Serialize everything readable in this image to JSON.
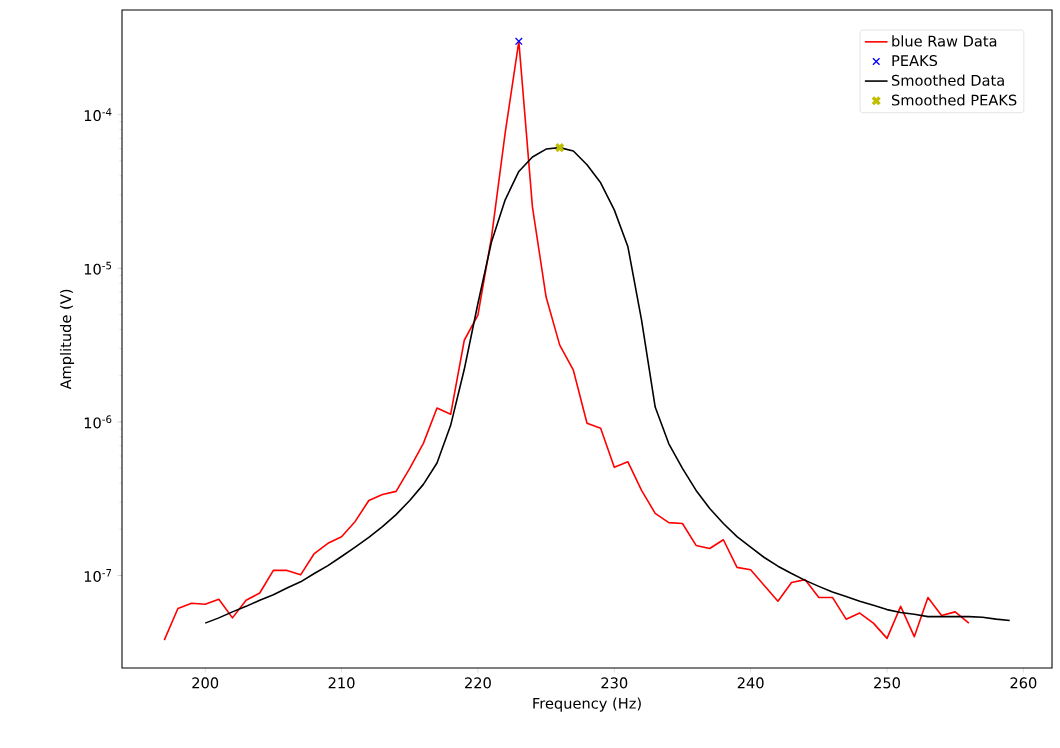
{
  "chart_data": {
    "type": "line",
    "xlabel": "Frequency (Hz)",
    "ylabel": "Amplitude (V)",
    "log": "y",
    "legend": "top right",
    "grid": false,
    "xlim": [
      193.9,
      262.1
    ],
    "ylim": [
      2.5e-08,
      0.00048
    ],
    "xticks": [
      200,
      210,
      220,
      230,
      240,
      250,
      260
    ],
    "yticks": [
      {
        "value": 1e-07,
        "label": "10$^{-7}$"
      },
      {
        "value": 1e-06,
        "label": "10$^{-6}$"
      },
      {
        "value": 1e-05,
        "label": "10$^{-5}$"
      },
      {
        "value": 0.0001,
        "label": "10$^{-4}$"
      }
    ],
    "series": [
      {
        "name": "blue Raw Data",
        "color": "#ff0000",
        "marker": "none",
        "line_style": "solid",
        "x": [
          197,
          198,
          199,
          200,
          201,
          202,
          203,
          204,
          205,
          206,
          207,
          208,
          209,
          210,
          211,
          212,
          213,
          214,
          215,
          216,
          217,
          218,
          219,
          220,
          221,
          222,
          223,
          224,
          225,
          226,
          227,
          228,
          229,
          230,
          231,
          232,
          233,
          234,
          235,
          236,
          237,
          238,
          239,
          240,
          241,
          242,
          243,
          244,
          245,
          246,
          247,
          248,
          249,
          250,
          251,
          252,
          253,
          254,
          255,
          256
        ],
        "values": [
          3.8e-08,
          6.1e-08,
          6.6e-08,
          6.5e-08,
          7e-08,
          5.3e-08,
          6.9e-08,
          7.7e-08,
          1.08e-07,
          1.08e-07,
          1.01e-07,
          1.39e-07,
          1.62e-07,
          1.79e-07,
          2.25e-07,
          3.08e-07,
          3.37e-07,
          3.53e-07,
          4.98e-07,
          7.25e-07,
          1.23e-06,
          1.12e-06,
          3.4e-06,
          4.95e-06,
          1.6e-05,
          7.6e-05,
          0.0003,
          2.5e-05,
          6.5e-06,
          3.16e-06,
          2.17e-06,
          9.8e-07,
          9.1e-07,
          5.06e-07,
          5.5e-07,
          3.58e-07,
          2.54e-07,
          2.21e-07,
          2.18e-07,
          1.57e-07,
          1.5e-07,
          1.71e-07,
          1.13e-07,
          1.09e-07,
          8.6e-08,
          6.8e-08,
          9e-08,
          9.4e-08,
          7.2e-08,
          7.2e-08,
          5.2e-08,
          5.7e-08,
          4.9e-08,
          3.9e-08,
          6.3e-08,
          4e-08,
          7.2e-08,
          5.5e-08,
          5.8e-08,
          4.9e-08
        ]
      },
      {
        "name": "PEAKS",
        "type": "scatter",
        "color": "#0000ff",
        "marker": "cross",
        "x": [
          223
        ],
        "values": [
          0.0003
        ]
      },
      {
        "name": "Smoothed Data",
        "color": "#000000",
        "marker": "none",
        "line_style": "solid",
        "x": [
          200,
          201,
          202,
          203,
          204,
          205,
          206,
          207,
          208,
          209,
          210,
          211,
          212,
          213,
          214,
          215,
          216,
          217,
          218,
          219,
          220,
          221,
          222,
          223,
          224,
          225,
          226,
          227,
          228,
          229,
          230,
          231,
          232,
          233,
          234,
          235,
          236,
          237,
          238,
          239,
          240,
          241,
          242,
          243,
          244,
          245,
          246,
          247,
          248,
          249,
          250,
          251,
          252,
          253,
          254,
          255,
          256,
          257,
          258,
          259
        ],
        "values": [
          4.9e-08,
          5.3e-08,
          5.8e-08,
          6.3e-08,
          6.9e-08,
          7.5e-08,
          8.3e-08,
          9.1e-08,
          1.03e-07,
          1.16e-07,
          1.33e-07,
          1.53e-07,
          1.77e-07,
          2.08e-07,
          2.49e-07,
          3.08e-07,
          3.92e-07,
          5.4e-07,
          9.5e-07,
          2.2e-06,
          5.9e-06,
          1.49e-05,
          2.79e-05,
          4.27e-05,
          5.3e-05,
          5.97e-05,
          6.1e-05,
          5.8e-05,
          4.72e-05,
          3.6e-05,
          2.4e-05,
          1.38e-05,
          4.6e-06,
          1.25e-06,
          7.2e-07,
          4.98e-07,
          3.58e-07,
          2.73e-07,
          2.18e-07,
          1.79e-07,
          1.53e-07,
          1.31e-07,
          1.15e-07,
          1.03e-07,
          9.3e-08,
          8.5e-08,
          7.8e-08,
          7.3e-08,
          6.8e-08,
          6.4e-08,
          6e-08,
          5.75e-08,
          5.6e-08,
          5.4e-08,
          5.4e-08,
          5.4e-08,
          5.4e-08,
          5.35e-08,
          5.2e-08,
          5.1e-08
        ]
      },
      {
        "name": "Smoothed PEAKS",
        "type": "scatter",
        "color": "#bfbf00",
        "marker": "cross",
        "x": [
          226
        ],
        "values": [
          6.1e-05
        ]
      }
    ]
  }
}
